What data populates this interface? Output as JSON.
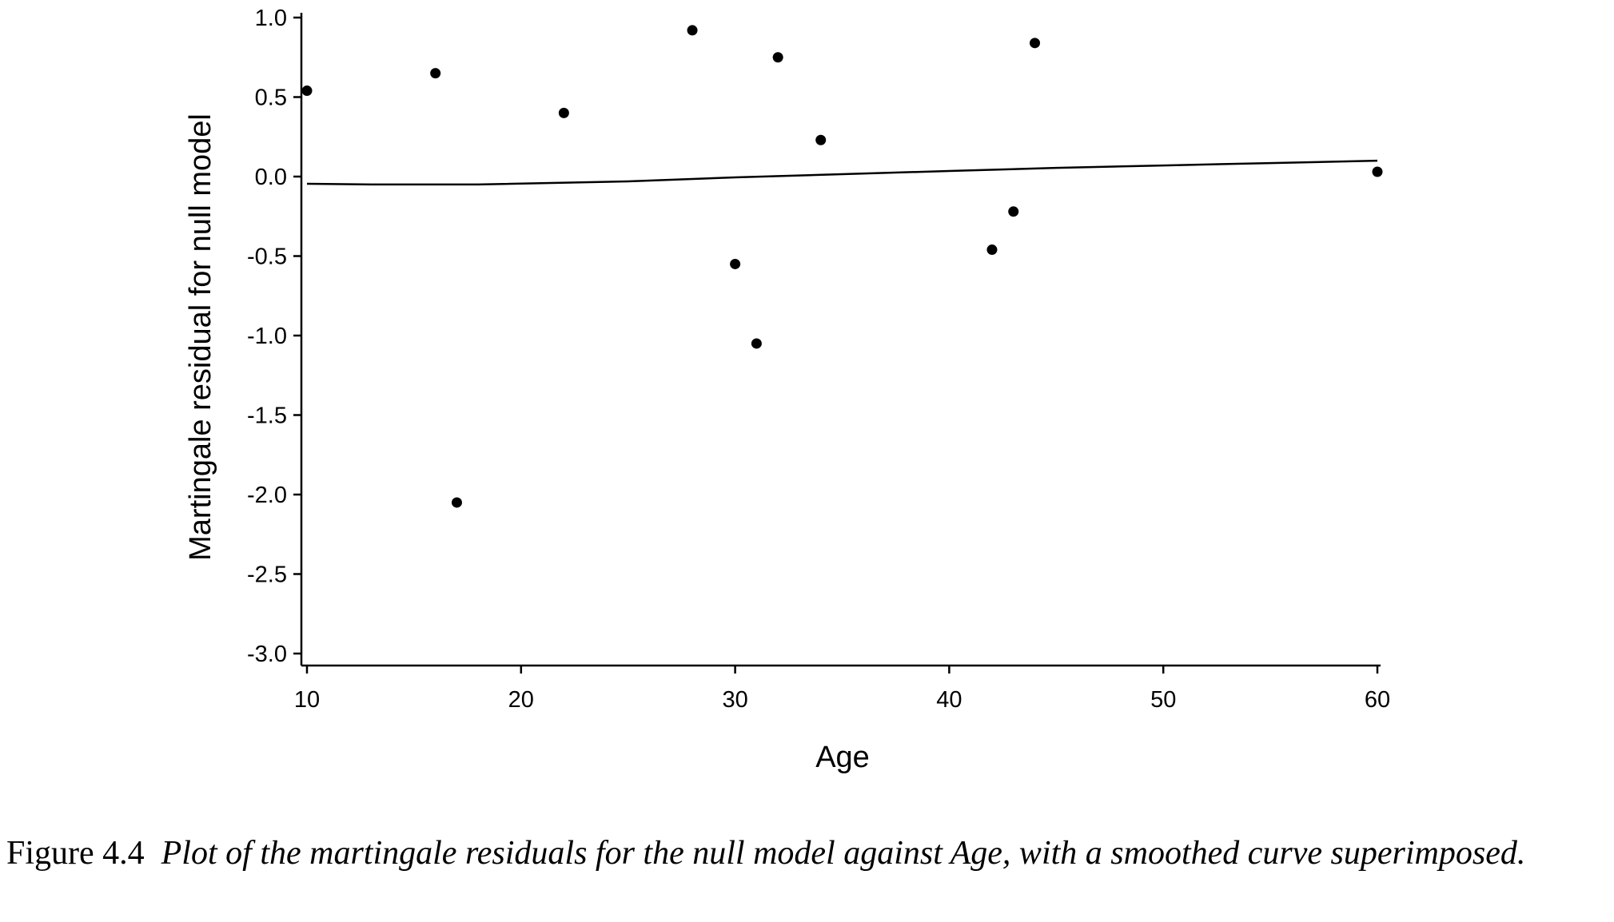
{
  "chart_data": {
    "type": "scatter",
    "xlabel": "Age",
    "ylabel": "Martingale residual for null model",
    "xlim": [
      10,
      60
    ],
    "ylim": [
      -3.0,
      1.0
    ],
    "xticks": [
      "10",
      "20",
      "30",
      "40",
      "50",
      "60"
    ],
    "yticks": [
      "1.0",
      "0.5",
      "0.0",
      "-0.5",
      "-1.0",
      "-1.5",
      "-2.0",
      "-2.5",
      "-3.0"
    ],
    "grid": false,
    "points": [
      {
        "x": 10,
        "y": 0.54
      },
      {
        "x": 16,
        "y": 0.65
      },
      {
        "x": 17,
        "y": -2.05
      },
      {
        "x": 22,
        "y": 0.4
      },
      {
        "x": 28,
        "y": 0.92
      },
      {
        "x": 30,
        "y": -0.55
      },
      {
        "x": 31,
        "y": -1.05
      },
      {
        "x": 32,
        "y": 0.75
      },
      {
        "x": 34,
        "y": 0.23
      },
      {
        "x": 42,
        "y": -0.46
      },
      {
        "x": 43,
        "y": -0.22
      },
      {
        "x": 44,
        "y": 0.84
      },
      {
        "x": 60,
        "y": 0.03
      }
    ],
    "smooth_curve": [
      {
        "x": 10,
        "y": -0.045
      },
      {
        "x": 13,
        "y": -0.05
      },
      {
        "x": 18,
        "y": -0.05
      },
      {
        "x": 25,
        "y": -0.03
      },
      {
        "x": 30,
        "y": -0.005
      },
      {
        "x": 35,
        "y": 0.015
      },
      {
        "x": 40,
        "y": 0.035
      },
      {
        "x": 45,
        "y": 0.055
      },
      {
        "x": 50,
        "y": 0.07
      },
      {
        "x": 55,
        "y": 0.085
      },
      {
        "x": 60,
        "y": 0.1
      }
    ]
  },
  "caption": {
    "label": "Figure 4.4",
    "text": "Plot of the martingale residuals for the null model against Age, with a smoothed curve superimposed."
  }
}
